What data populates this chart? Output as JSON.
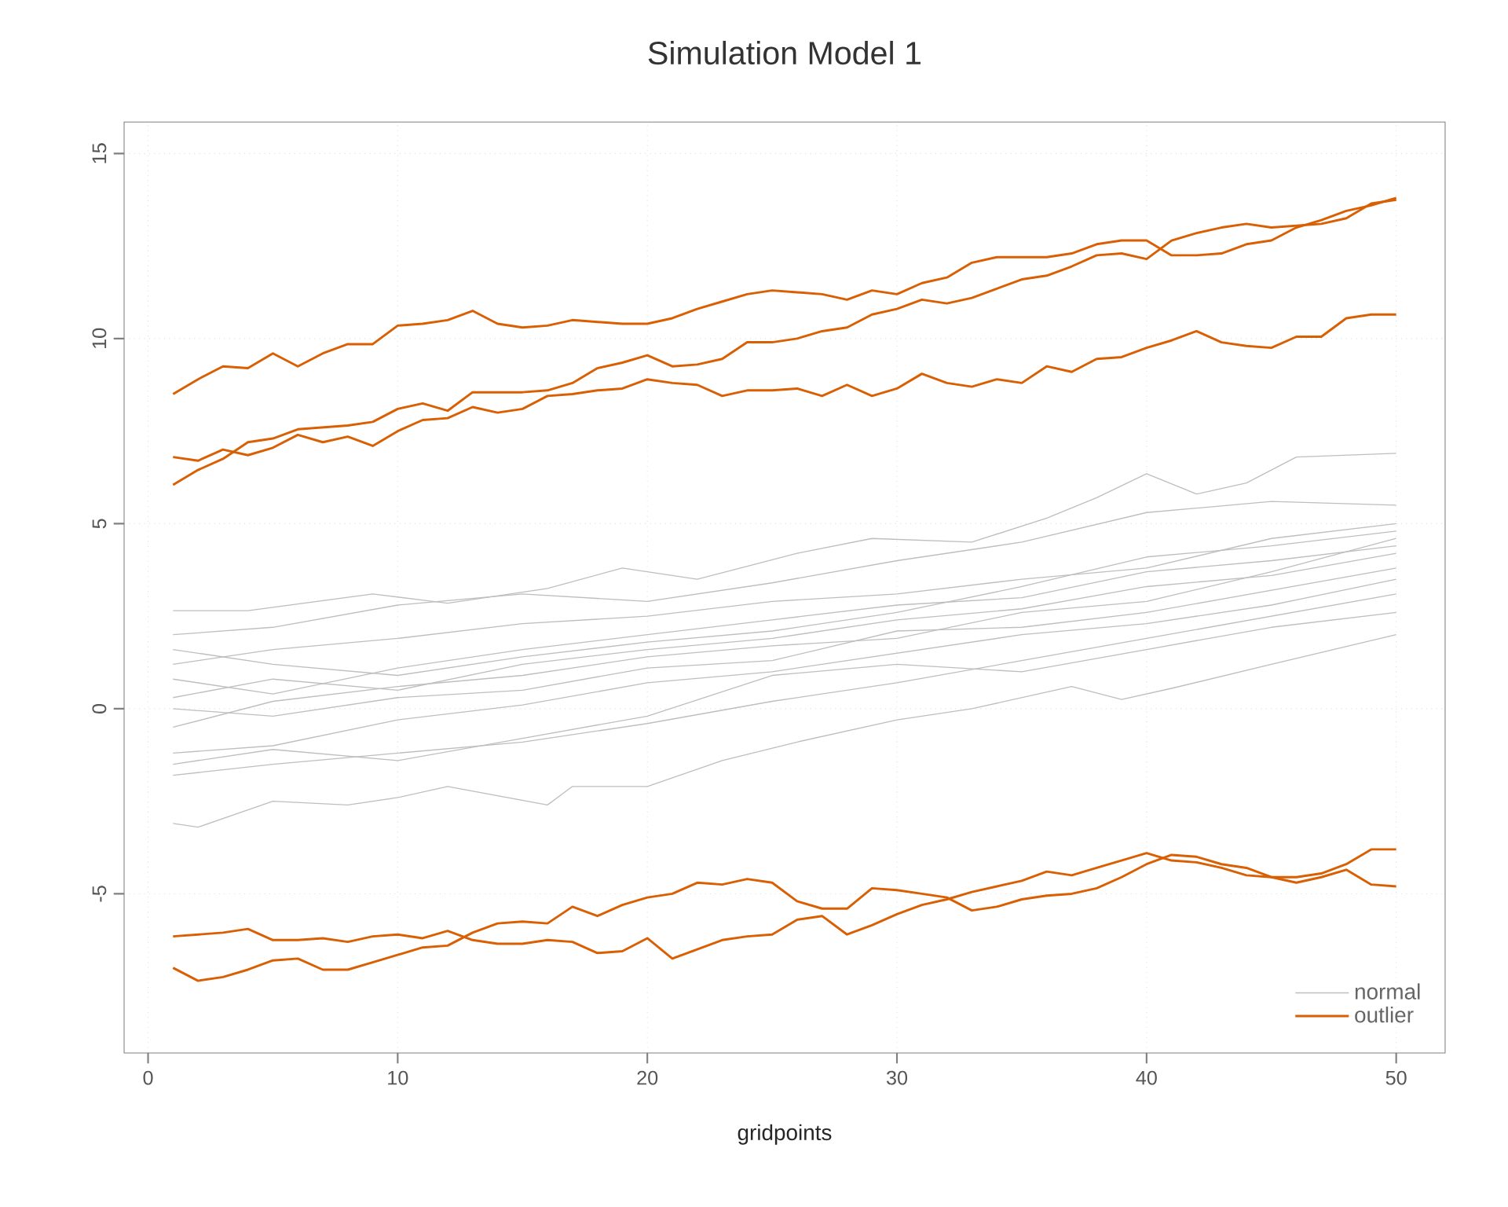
{
  "chart_data": {
    "type": "line",
    "title": "Simulation Model 1",
    "xlabel": "gridpoints",
    "xlim": [
      -0.96,
      51.96
    ],
    "ylim": [
      -9.3,
      15.85
    ],
    "xticks": [
      0,
      10,
      20,
      30,
      40,
      50
    ],
    "yticks": [
      -5,
      0,
      5,
      10,
      15
    ],
    "grid": true,
    "legend": "bottom right",
    "line_style": "solid",
    "marker": "none",
    "series": [
      {
        "name": "normal",
        "color": "#bebebe",
        "x": [
          1,
          5,
          10,
          15,
          20,
          25,
          30,
          35,
          40,
          45,
          50
        ],
        "values": [
          0.3,
          0.8,
          0.5,
          1.2,
          1.6,
          1.9,
          2.4,
          2.7,
          3.3,
          3.6,
          4.2
        ]
      },
      {
        "color": "#bebebe",
        "x": [
          1,
          2,
          5,
          8,
          10,
          12,
          16,
          17,
          20,
          23,
          26,
          30,
          33,
          37,
          39,
          41,
          45,
          50
        ],
        "values": [
          -3.1,
          -3.2,
          -2.5,
          -2.6,
          -2.4,
          -2.1,
          -2.6,
          -2.1,
          -2.1,
          -1.4,
          -0.9,
          -0.3,
          0.0,
          0.6,
          0.25,
          0.55,
          1.2,
          2.0
        ]
      },
      {
        "color": "#bebebe",
        "x": [
          1,
          4,
          9,
          12,
          16,
          19,
          22,
          26,
          29,
          33,
          36,
          38,
          40,
          42,
          44,
          46,
          50
        ],
        "values": [
          2.65,
          2.65,
          3.1,
          2.85,
          3.25,
          3.8,
          3.5,
          4.2,
          4.6,
          4.5,
          5.15,
          5.7,
          6.35,
          5.8,
          6.1,
          6.8,
          6.9
        ]
      },
      {
        "color": "#bebebe",
        "x": [
          1,
          5,
          10,
          15,
          20,
          25,
          30,
          35,
          40,
          45,
          50
        ],
        "values": [
          2.0,
          2.2,
          2.8,
          3.1,
          2.9,
          3.4,
          4.0,
          4.5,
          5.3,
          5.6,
          5.5
        ]
      },
      {
        "color": "#bebebe",
        "x": [
          1,
          5,
          10,
          15,
          20,
          25,
          30,
          35,
          40,
          45,
          50
        ],
        "values": [
          -1.8,
          -1.5,
          -1.2,
          -0.9,
          -0.4,
          0.2,
          0.7,
          1.3,
          1.9,
          2.5,
          3.1
        ]
      },
      {
        "color": "#bebebe",
        "x": [
          1,
          5,
          10,
          15,
          20,
          25,
          30,
          35,
          40,
          45,
          50
        ],
        "values": [
          -0.5,
          0.2,
          0.6,
          0.9,
          1.4,
          1.7,
          1.9,
          2.6,
          2.9,
          3.7,
          4.6
        ]
      },
      {
        "color": "#bebebe",
        "x": [
          1,
          5,
          10,
          15,
          20,
          25,
          30,
          35,
          40,
          45,
          50
        ],
        "values": [
          1.2,
          1.6,
          1.9,
          2.3,
          2.5,
          2.9,
          3.1,
          3.5,
          3.8,
          4.6,
          5.0
        ]
      },
      {
        "color": "#bebebe",
        "x": [
          1,
          5,
          10,
          15,
          20,
          25,
          30,
          35,
          40,
          45,
          50
        ],
        "values": [
          -1.2,
          -1.0,
          -0.3,
          0.1,
          0.7,
          1.0,
          1.5,
          2.0,
          2.3,
          2.8,
          3.5
        ]
      },
      {
        "color": "#bebebe",
        "x": [
          1,
          5,
          10,
          15,
          20,
          25,
          30,
          35,
          40,
          45,
          50
        ],
        "values": [
          0.8,
          0.4,
          1.1,
          1.6,
          2.0,
          2.4,
          2.8,
          3.0,
          3.7,
          4.0,
          4.4
        ]
      },
      {
        "color": "#bebebe",
        "x": [
          1,
          5,
          10,
          15,
          20,
          25,
          30,
          35,
          40,
          45,
          50
        ],
        "values": [
          -1.5,
          -1.1,
          -1.4,
          -0.8,
          -0.2,
          0.9,
          1.2,
          1.0,
          1.6,
          2.2,
          2.6
        ]
      },
      {
        "color": "#bebebe",
        "x": [
          1,
          5,
          10,
          15,
          20,
          25,
          30,
          35,
          40,
          45,
          50
        ],
        "values": [
          0.0,
          -0.2,
          0.3,
          0.5,
          1.1,
          1.3,
          2.1,
          2.2,
          2.6,
          3.2,
          3.8
        ]
      },
      {
        "color": "#bebebe",
        "x": [
          1,
          5,
          10,
          15,
          20,
          25,
          30,
          35,
          40,
          45,
          50
        ],
        "values": [
          1.6,
          1.2,
          0.9,
          1.4,
          1.8,
          2.1,
          2.6,
          3.3,
          4.1,
          4.4,
          4.8
        ]
      },
      {
        "name": "outlier",
        "color": "#d95f02",
        "x": [
          1,
          2,
          3,
          4,
          5,
          6,
          7,
          8,
          9,
          10,
          11,
          12,
          13,
          14,
          15,
          16,
          17,
          18,
          19,
          20,
          21,
          22,
          23,
          24,
          25,
          26,
          27,
          28,
          29,
          30,
          31,
          32,
          33,
          34,
          35,
          36,
          37,
          38,
          39,
          40,
          41,
          42,
          43,
          44,
          45,
          46,
          47,
          48,
          49,
          50
        ],
        "values": [
          8.5,
          8.9,
          9.25,
          9.2,
          9.6,
          9.25,
          9.6,
          9.85,
          9.85,
          10.35,
          10.4,
          10.5,
          10.75,
          10.4,
          10.3,
          10.35,
          10.5,
          10.45,
          10.4,
          10.4,
          10.55,
          10.8,
          11.0,
          11.2,
          11.3,
          11.25,
          11.2,
          11.05,
          11.3,
          11.2,
          11.5,
          11.65,
          12.05,
          12.2,
          12.2,
          12.2,
          12.3,
          12.55,
          12.65,
          12.65,
          12.25,
          12.25,
          12.3,
          12.55,
          12.65,
          13.0,
          13.2,
          13.45,
          13.6,
          13.8
        ]
      },
      {
        "color": "#d95f02",
        "x": [
          1,
          2,
          3,
          4,
          5,
          6,
          7,
          8,
          9,
          10,
          11,
          12,
          13,
          14,
          15,
          16,
          17,
          18,
          19,
          20,
          21,
          22,
          23,
          24,
          25,
          26,
          27,
          28,
          29,
          30,
          31,
          32,
          33,
          34,
          35,
          36,
          37,
          38,
          39,
          40,
          41,
          42,
          43,
          44,
          45,
          46,
          47,
          48,
          49,
          50
        ],
        "values": [
          6.8,
          6.7,
          7.0,
          6.85,
          7.05,
          7.4,
          7.2,
          7.35,
          7.1,
          7.5,
          7.8,
          7.85,
          8.15,
          8.0,
          8.1,
          8.45,
          8.5,
          8.6,
          8.65,
          8.9,
          8.8,
          8.75,
          8.45,
          8.6,
          8.6,
          8.65,
          8.45,
          8.75,
          8.45,
          8.65,
          9.05,
          8.8,
          8.7,
          8.9,
          8.8,
          9.25,
          9.1,
          9.45,
          9.5,
          9.75,
          9.95,
          10.2,
          9.9,
          9.8,
          9.75,
          10.05,
          10.05,
          10.55,
          10.65,
          10.65
        ]
      },
      {
        "color": "#d95f02",
        "x": [
          1,
          2,
          3,
          4,
          5,
          6,
          7,
          8,
          9,
          10,
          11,
          12,
          13,
          14,
          15,
          16,
          17,
          18,
          19,
          20,
          21,
          22,
          23,
          24,
          25,
          26,
          27,
          28,
          29,
          30,
          31,
          32,
          33,
          34,
          35,
          36,
          37,
          38,
          39,
          40,
          41,
          42,
          43,
          44,
          45,
          46,
          47,
          48,
          49,
          50
        ],
        "values": [
          6.05,
          6.45,
          6.75,
          7.2,
          7.3,
          7.55,
          7.6,
          7.65,
          7.75,
          8.1,
          8.25,
          8.05,
          8.55,
          8.55,
          8.55,
          8.6,
          8.8,
          9.2,
          9.35,
          9.55,
          9.25,
          9.3,
          9.45,
          9.9,
          9.9,
          10.0,
          10.2,
          10.3,
          10.65,
          10.8,
          11.05,
          10.95,
          11.1,
          11.35,
          11.6,
          11.7,
          11.95,
          12.25,
          12.3,
          12.15,
          12.65,
          12.85,
          13.0,
          13.1,
          13.0,
          13.05,
          13.1,
          13.25,
          13.65,
          13.75
        ]
      },
      {
        "color": "#d95f02",
        "x": [
          1,
          2,
          3,
          4,
          5,
          6,
          7,
          8,
          9,
          10,
          11,
          12,
          13,
          14,
          15,
          16,
          17,
          18,
          19,
          20,
          21,
          22,
          23,
          24,
          25,
          26,
          27,
          28,
          29,
          30,
          31,
          32,
          33,
          34,
          35,
          36,
          37,
          38,
          39,
          40,
          41,
          42,
          43,
          44,
          45,
          46,
          47,
          48,
          49,
          50
        ],
        "values": [
          -6.15,
          -6.1,
          -6.05,
          -5.95,
          -6.25,
          -6.25,
          -6.2,
          -6.3,
          -6.15,
          -6.1,
          -6.2,
          -6.0,
          -6.25,
          -6.35,
          -6.35,
          -6.25,
          -6.3,
          -6.6,
          -6.55,
          -6.2,
          -6.75,
          -6.5,
          -6.25,
          -6.15,
          -6.1,
          -5.7,
          -5.6,
          -6.1,
          -5.85,
          -5.55,
          -5.3,
          -5.15,
          -4.95,
          -4.8,
          -4.65,
          -4.4,
          -4.5,
          -4.3,
          -4.1,
          -3.9,
          -4.1,
          -4.15,
          -4.3,
          -4.5,
          -4.55,
          -4.55,
          -4.45,
          -4.2,
          -3.8,
          -3.8
        ]
      },
      {
        "color": "#d95f02",
        "x": [
          1,
          2,
          3,
          4,
          5,
          6,
          7,
          8,
          9,
          10,
          11,
          12,
          13,
          14,
          15,
          16,
          17,
          18,
          19,
          20,
          21,
          22,
          23,
          24,
          25,
          26,
          27,
          28,
          29,
          30,
          31,
          32,
          33,
          34,
          35,
          36,
          37,
          38,
          39,
          40,
          41,
          42,
          43,
          44,
          45,
          46,
          47,
          48,
          49,
          50
        ],
        "values": [
          -7.0,
          -7.35,
          -7.25,
          -7.05,
          -6.8,
          -6.75,
          -7.05,
          -7.05,
          -6.85,
          -6.65,
          -6.45,
          -6.4,
          -6.05,
          -5.8,
          -5.75,
          -5.8,
          -5.35,
          -5.6,
          -5.3,
          -5.1,
          -5.0,
          -4.7,
          -4.75,
          -4.6,
          -4.7,
          -5.2,
          -5.4,
          -5.4,
          -4.85,
          -4.9,
          -5.0,
          -5.1,
          -5.45,
          -5.35,
          -5.15,
          -5.05,
          -5.0,
          -4.85,
          -4.55,
          -4.2,
          -3.95,
          -4.0,
          -4.2,
          -4.3,
          -4.55,
          -4.7,
          -4.55,
          -4.35,
          -4.75,
          -4.8
        ]
      }
    ]
  }
}
